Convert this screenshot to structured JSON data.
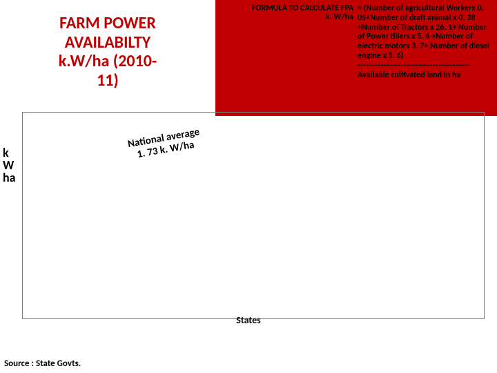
{
  "title": {
    "text_line1": "FARM POWER",
    "text_line2": "AVAILABILTY",
    "text_line3": "k.W/ha (2010-",
    "text_line4": "11)",
    "color": "#c00000",
    "fontsize": 24
  },
  "formula": {
    "label_line1": "FORMULA TO CALCULATE FPA",
    "label_line2": "k. W/ha",
    "body": "= (Number of agricultural Workerx 0. 05+Number of draft animal x 0. 38 +Number of Tractors x 26. 1+ Number of Power tillers x 5. 6 +Number of electric motorx 3. 7+ Number of diesel engine x 5. 6)",
    "separator": "---------------------------------------",
    "denom": "Available cultivated land in ha",
    "bg_color": "#c00000",
    "text_color": "#000000",
    "fontsize": 12
  },
  "chart": {
    "type": "bar",
    "y_label_line1": "k",
    "y_label_line2": "W",
    "y_label_line3": "ha",
    "x_label": "States",
    "border_color": "#7f7f7f",
    "label_color": "#000000",
    "label_fontsize": 18,
    "xlabel_fontsize": 14,
    "annotation": {
      "line1": "National average",
      "line2": "1. 73 k. W/ha",
      "fontsize": 15,
      "color": "#000000",
      "rotation_deg": -10
    }
  },
  "source": {
    "text": "Source : State Govts.",
    "fontsize": 13,
    "color": "#000000"
  }
}
